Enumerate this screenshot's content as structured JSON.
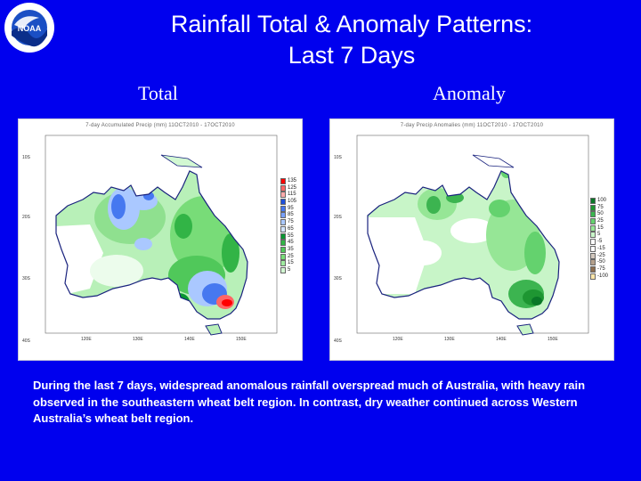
{
  "header": {
    "title_line1": "Rainfall Total & Anomaly Patterns:",
    "title_line2": "Last 7 Days",
    "logo_label": "NOAA"
  },
  "panels": {
    "total": {
      "heading": "Total",
      "map_title": "7-day Accumulated Precip (mm)  11OCT2010 - 17OCT2010",
      "lat_labels": [
        "10S",
        "20S",
        "30S",
        "40S"
      ],
      "lon_labels": [
        "120E",
        "130E",
        "140E",
        "150E"
      ],
      "legend": [
        {
          "label": "135",
          "color": "#ff0000"
        },
        {
          "label": "125",
          "color": "#ff6666"
        },
        {
          "label": "115",
          "color": "#ffaaaa"
        },
        {
          "label": "105",
          "color": "#1e50dc"
        },
        {
          "label": "95",
          "color": "#4678f0"
        },
        {
          "label": "85",
          "color": "#78a0ff"
        },
        {
          "label": "75",
          "color": "#aac8ff"
        },
        {
          "label": "65",
          "color": "#d2e4ff"
        },
        {
          "label": "55",
          "color": "#0a9632"
        },
        {
          "label": "45",
          "color": "#32b446"
        },
        {
          "label": "35",
          "color": "#50c85a"
        },
        {
          "label": "25",
          "color": "#78dc78"
        },
        {
          "label": "15",
          "color": "#a0eba0"
        },
        {
          "label": "5",
          "color": "#d2f8d2"
        }
      ]
    },
    "anomaly": {
      "heading": "Anomaly",
      "map_title": "7-day Precip Anomalies (mm)  11OCT2010 - 17OCT2010",
      "lat_labels": [
        "10S",
        "20S",
        "30S",
        "40S"
      ],
      "lon_labels": [
        "120E",
        "130E",
        "140E",
        "150E"
      ],
      "legend": [
        {
          "label": "100",
          "color": "#0a7828"
        },
        {
          "label": "75",
          "color": "#1e9632"
        },
        {
          "label": "50",
          "color": "#3cb450"
        },
        {
          "label": "25",
          "color": "#64d26e"
        },
        {
          "label": "15",
          "color": "#96e696"
        },
        {
          "label": "5",
          "color": "#c8f5c8"
        },
        {
          "label": "-5",
          "color": "#ffffff"
        },
        {
          "label": "-15",
          "color": "#ffffff"
        },
        {
          "label": "-25",
          "color": "#d2c8be"
        },
        {
          "label": "-50",
          "color": "#b4a08c"
        },
        {
          "label": "-75",
          "color": "#8c6e50"
        },
        {
          "label": "-100",
          "color": "#ffe6aa"
        }
      ]
    }
  },
  "description": "During the last 7 days, widespread anomalous rainfall overspread much of Australia, with heavy rain observed in the southeastern wheat belt region.  In contrast, dry weather continued across Western Australia’s wheat belt region.",
  "colors": {
    "background": "#0000ee",
    "text": "#ffffff",
    "coastline": "#1a237e"
  }
}
